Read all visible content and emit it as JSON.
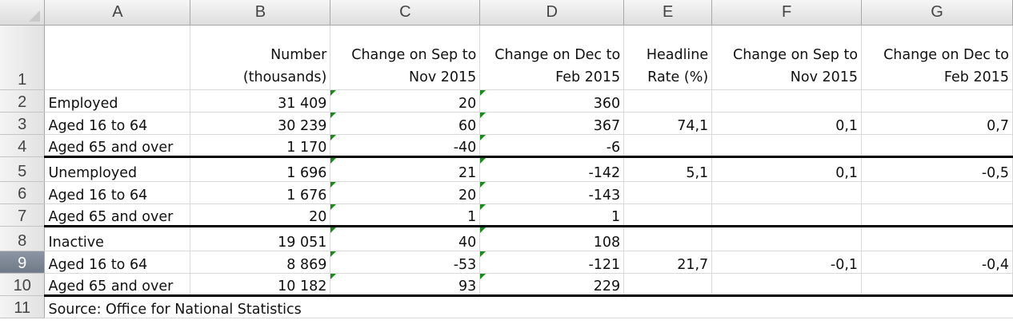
{
  "columns": [
    "A",
    "B",
    "C",
    "D",
    "E",
    "F",
    "G"
  ],
  "rows": [
    {
      "n": "1",
      "selected": false,
      "cells": [
        "",
        "Number (thousands)",
        "Change on Sep to Nov 2015",
        "Change on Dec to Feb 2015",
        "Headline Rate (%)",
        "Change on Sep to Nov 2015",
        "Change on Dec to Feb 2015"
      ]
    },
    {
      "n": "2",
      "selected": false,
      "cells": [
        "Employed",
        "31 409",
        "20",
        "360",
        "",
        "",
        ""
      ]
    },
    {
      "n": "3",
      "selected": false,
      "cells": [
        "Aged 16 to 64",
        "30 239",
        "60",
        "367",
        "74,1",
        "0,1",
        "0,7"
      ]
    },
    {
      "n": "4",
      "selected": false,
      "cells": [
        "Aged 65 and over",
        "1 170",
        "-40",
        "-6",
        "",
        "",
        ""
      ]
    },
    {
      "n": "5",
      "selected": false,
      "cells": [
        "Unemployed",
        "1 696",
        "21",
        "-142",
        "5,1",
        "0,1",
        "-0,5"
      ]
    },
    {
      "n": "6",
      "selected": false,
      "cells": [
        "Aged 16 to 64",
        "1 676",
        "20",
        "-143",
        "",
        "",
        ""
      ]
    },
    {
      "n": "7",
      "selected": false,
      "cells": [
        "Aged 65 and over",
        "20",
        "1",
        "1",
        "",
        "",
        ""
      ]
    },
    {
      "n": "8",
      "selected": false,
      "cells": [
        "Inactive",
        "19 051",
        "40",
        "108",
        "",
        "",
        ""
      ]
    },
    {
      "n": "9",
      "selected": true,
      "cells": [
        "Aged 16 to 64",
        "8 869",
        "-53",
        "-121",
        "21,7",
        "-0,1",
        "-0,4"
      ]
    },
    {
      "n": "10",
      "selected": false,
      "cells": [
        "Aged 65 and over",
        "10 182",
        "93",
        "229",
        "",
        "",
        ""
      ]
    },
    {
      "n": "11",
      "selected": false,
      "cells": [
        "Source: Office for National Statistics",
        "",
        "",
        "",
        "",
        "",
        ""
      ]
    }
  ],
  "colors": {
    "error_flag": "#1a8a1a",
    "selected_row_header": "#7a8391",
    "border": "#000000"
  }
}
